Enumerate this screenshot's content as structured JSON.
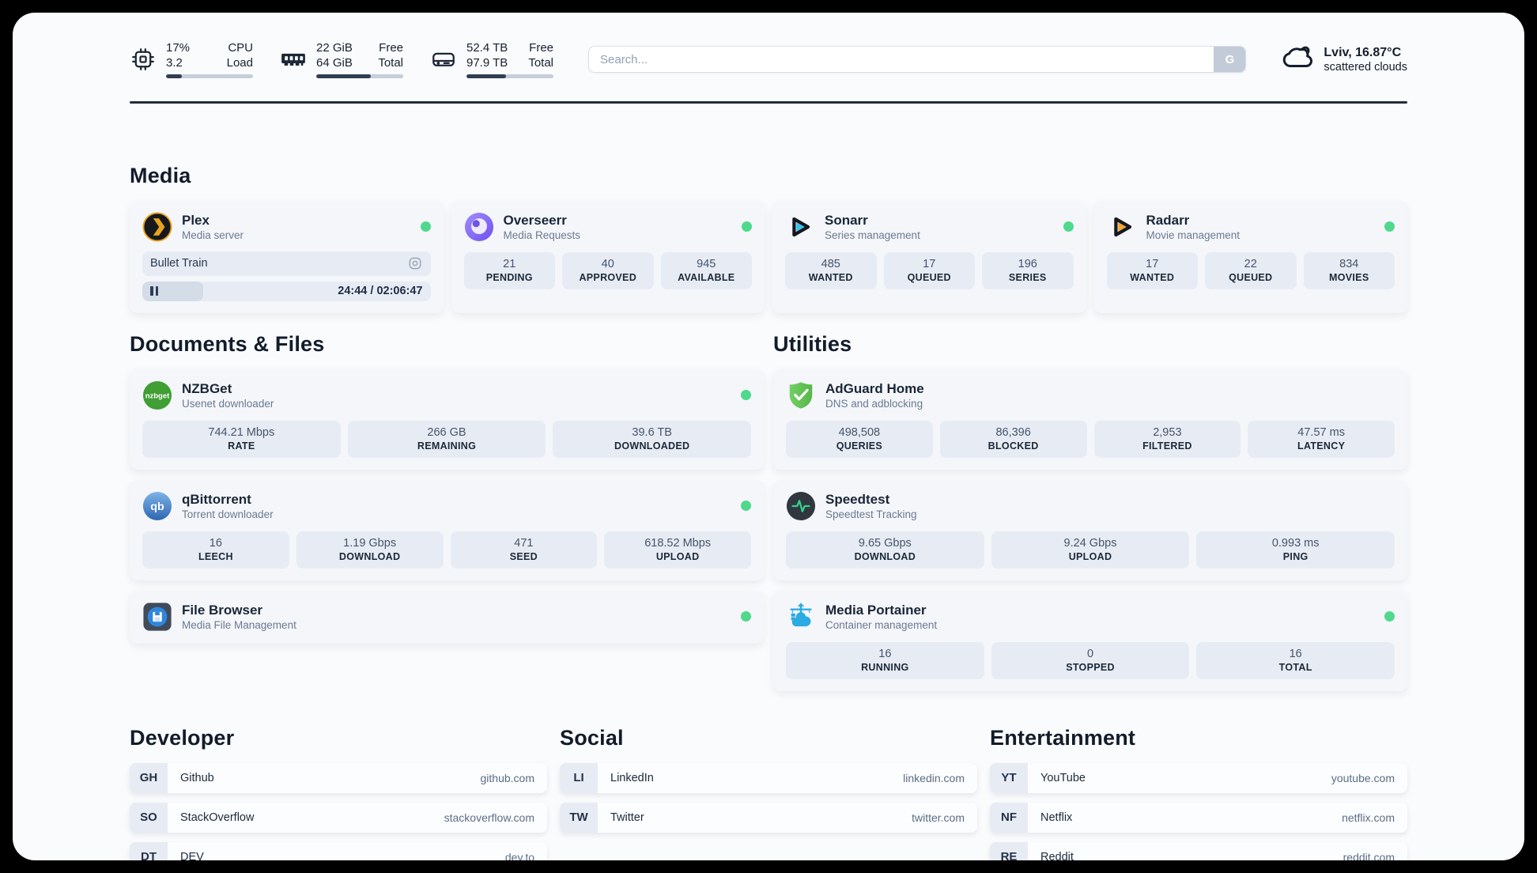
{
  "header": {
    "stats": [
      {
        "icon": "cpu-icon",
        "values": [
          "17%",
          "3.2"
        ],
        "labels": [
          "CPU",
          "Load"
        ],
        "progress_pct": 18
      },
      {
        "icon": "ram-icon",
        "values": [
          "22 GiB",
          "64 GiB"
        ],
        "labels": [
          "Free",
          "Total"
        ],
        "progress_pct": 63
      },
      {
        "icon": "disk-icon",
        "values": [
          "52.4 TB",
          "97.9 TB"
        ],
        "labels": [
          "Free",
          "Total"
        ],
        "progress_pct": 45
      }
    ],
    "search": {
      "placeholder": "Search...",
      "button_label": "G"
    },
    "weather": {
      "icon": "cloud-icon",
      "location_temp": "Lviv, 16.87°C",
      "condition": "scattered clouds"
    }
  },
  "media_section": {
    "title": "Media",
    "cards": [
      {
        "icon": "plex-icon",
        "name": "Plex",
        "subtitle": "Media server",
        "online": true,
        "player": {
          "now_playing": "Bullet Train",
          "time": "24:44 / 02:06:47",
          "progress_pct": 21,
          "controls_icon": "pause-icon",
          "session_icon": "live-photo-icon"
        }
      },
      {
        "icon": "overseerr-icon",
        "name": "Overseerr",
        "subtitle": "Media Requests",
        "online": true,
        "stats": [
          {
            "value": "21",
            "label": "PENDING"
          },
          {
            "value": "40",
            "label": "APPROVED"
          },
          {
            "value": "945",
            "label": "AVAILABLE"
          }
        ]
      },
      {
        "icon": "sonarr-icon",
        "name": "Sonarr",
        "subtitle": "Series management",
        "online": true,
        "stats": [
          {
            "value": "485",
            "label": "WANTED"
          },
          {
            "value": "17",
            "label": "QUEUED"
          },
          {
            "value": "196",
            "label": "SERIES"
          }
        ]
      },
      {
        "icon": "radarr-icon",
        "name": "Radarr",
        "subtitle": "Movie management",
        "online": true,
        "stats": [
          {
            "value": "17",
            "label": "WANTED"
          },
          {
            "value": "22",
            "label": "QUEUED"
          },
          {
            "value": "834",
            "label": "MOVIES"
          }
        ]
      }
    ]
  },
  "columns": [
    {
      "title": "Documents & Files",
      "cards": [
        {
          "icon": "nzbget-icon",
          "name": "NZBGet",
          "subtitle": "Usenet downloader",
          "online": true,
          "stats": [
            {
              "value": "744.21 Mbps",
              "label": "RATE"
            },
            {
              "value": "266 GB",
              "label": "REMAINING"
            },
            {
              "value": "39.6 TB",
              "label": "DOWNLOADED"
            }
          ]
        },
        {
          "icon": "qbittorrent-icon",
          "name": "qBittorrent",
          "subtitle": "Torrent downloader",
          "online": true,
          "stats": [
            {
              "value": "16",
              "label": "LEECH"
            },
            {
              "value": "1.19 Gbps",
              "label": "DOWNLOAD"
            },
            {
              "value": "471",
              "label": "SEED"
            },
            {
              "value": "618.52 Mbps",
              "label": "UPLOAD"
            }
          ]
        },
        {
          "icon": "filebrowser-icon",
          "name": "File Browser",
          "subtitle": "Media File Management",
          "online": true
        }
      ]
    },
    {
      "title": "Utilities",
      "cards": [
        {
          "icon": "adguard-icon",
          "name": "AdGuard Home",
          "subtitle": "DNS and adblocking",
          "online": false,
          "stats": [
            {
              "value": "498,508",
              "label": "QUERIES"
            },
            {
              "value": "86,396",
              "label": "BLOCKED"
            },
            {
              "value": "2,953",
              "label": "FILTERED"
            },
            {
              "value": "47.57 ms",
              "label": "LATENCY"
            }
          ]
        },
        {
          "icon": "speedtest-icon",
          "name": "Speedtest",
          "subtitle": "Speedtest Tracking",
          "online": false,
          "stats": [
            {
              "value": "9.65 Gbps",
              "label": "DOWNLOAD"
            },
            {
              "value": "9.24 Gbps",
              "label": "UPLOAD"
            },
            {
              "value": "0.993 ms",
              "label": "PING"
            }
          ]
        },
        {
          "icon": "portainer-icon",
          "name": "Media Portainer",
          "subtitle": "Container management",
          "online": true,
          "stats": [
            {
              "value": "16",
              "label": "RUNNING"
            },
            {
              "value": "0",
              "label": "STOPPED"
            },
            {
              "value": "16",
              "label": "TOTAL"
            }
          ]
        }
      ]
    }
  ],
  "bookmark_groups": [
    {
      "title": "Developer",
      "links": [
        {
          "abbr": "GH",
          "name": "Github",
          "url": "github.com"
        },
        {
          "abbr": "SO",
          "name": "StackOverflow",
          "url": "stackoverflow.com"
        },
        {
          "abbr": "DT",
          "name": "DEV",
          "url": "dev.to"
        }
      ]
    },
    {
      "title": "Social",
      "links": [
        {
          "abbr": "LI",
          "name": "LinkedIn",
          "url": "linkedin.com"
        },
        {
          "abbr": "TW",
          "name": "Twitter",
          "url": "twitter.com"
        }
      ]
    },
    {
      "title": "Entertainment",
      "links": [
        {
          "abbr": "YT",
          "name": "YouTube",
          "url": "youtube.com"
        },
        {
          "abbr": "NF",
          "name": "Netflix",
          "url": "netflix.com"
        },
        {
          "abbr": "RE",
          "name": "Reddit",
          "url": "reddit.com"
        }
      ]
    }
  ],
  "colors": {
    "status_online": "#4ed98c",
    "accent_dark": "#1c2737",
    "tile_bg": "#e7ecf4",
    "page_bg": "#fafbfd"
  }
}
